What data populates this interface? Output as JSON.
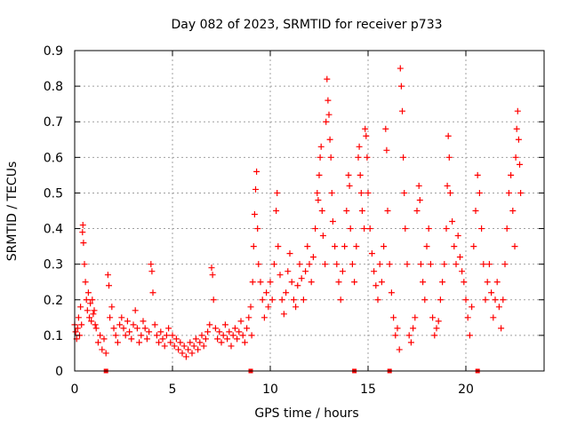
{
  "chart_data": {
    "type": "scatter",
    "title": "Day 082 of 2023, SRMTID for receiver p733",
    "xlabel": "GPS time / hours",
    "ylabel": "SRMTID / TECUs",
    "xlim": [
      0,
      24
    ],
    "ylim": [
      0,
      0.9
    ],
    "xticks": [
      0,
      5,
      10,
      15,
      20
    ],
    "yticks": [
      0,
      0.1,
      0.2,
      0.3,
      0.4,
      0.5,
      0.6,
      0.7,
      0.8,
      0.9
    ],
    "xtick_labels": [
      "0",
      "5",
      "10",
      "15",
      "20"
    ],
    "ytick_labels": [
      "0",
      "0.1",
      "0.2",
      "0.3",
      "0.4",
      "0.5",
      "0.6",
      "0.7",
      "0.8",
      "0.9"
    ],
    "grid": true,
    "marker": "+",
    "color": "#ff0000",
    "baseline_markers_x": [
      1.6,
      9.0,
      14.3,
      16.1,
      20.6
    ],
    "series": [
      {
        "name": "SRMTID",
        "points": [
          [
            0.0,
            0.13
          ],
          [
            0.05,
            0.11
          ],
          [
            0.1,
            0.09
          ],
          [
            0.15,
            0.12
          ],
          [
            0.2,
            0.15
          ],
          [
            0.25,
            0.1
          ],
          [
            0.3,
            0.18
          ],
          [
            0.35,
            0.13
          ],
          [
            0.4,
            0.39
          ],
          [
            0.42,
            0.41
          ],
          [
            0.45,
            0.36
          ],
          [
            0.5,
            0.3
          ],
          [
            0.55,
            0.25
          ],
          [
            0.6,
            0.2
          ],
          [
            0.65,
            0.17
          ],
          [
            0.7,
            0.22
          ],
          [
            0.75,
            0.15
          ],
          [
            0.8,
            0.19
          ],
          [
            0.85,
            0.14
          ],
          [
            0.9,
            0.2
          ],
          [
            0.95,
            0.16
          ],
          [
            1.0,
            0.17
          ],
          [
            1.05,
            0.13
          ],
          [
            1.1,
            0.12
          ],
          [
            1.2,
            0.08
          ],
          [
            1.3,
            0.1
          ],
          [
            1.4,
            0.06
          ],
          [
            1.5,
            0.09
          ],
          [
            1.6,
            0.05
          ],
          [
            1.7,
            0.27
          ],
          [
            1.75,
            0.24
          ],
          [
            1.8,
            0.15
          ],
          [
            1.9,
            0.18
          ],
          [
            2.0,
            0.12
          ],
          [
            2.1,
            0.1
          ],
          [
            2.2,
            0.08
          ],
          [
            2.3,
            0.13
          ],
          [
            2.4,
            0.15
          ],
          [
            2.5,
            0.12
          ],
          [
            2.6,
            0.1
          ],
          [
            2.7,
            0.14
          ],
          [
            2.8,
            0.11
          ],
          [
            2.9,
            0.09
          ],
          [
            3.0,
            0.13
          ],
          [
            3.1,
            0.17
          ],
          [
            3.2,
            0.12
          ],
          [
            3.3,
            0.08
          ],
          [
            3.4,
            0.1
          ],
          [
            3.5,
            0.14
          ],
          [
            3.6,
            0.12
          ],
          [
            3.7,
            0.09
          ],
          [
            3.8,
            0.11
          ],
          [
            3.9,
            0.3
          ],
          [
            3.95,
            0.28
          ],
          [
            4.0,
            0.22
          ],
          [
            4.1,
            0.13
          ],
          [
            4.2,
            0.1
          ],
          [
            4.3,
            0.08
          ],
          [
            4.4,
            0.11
          ],
          [
            4.5,
            0.09
          ],
          [
            4.6,
            0.07
          ],
          [
            4.7,
            0.1
          ],
          [
            4.8,
            0.12
          ],
          [
            4.9,
            0.08
          ],
          [
            5.0,
            0.1
          ],
          [
            5.1,
            0.07
          ],
          [
            5.2,
            0.09
          ],
          [
            5.3,
            0.06
          ],
          [
            5.4,
            0.08
          ],
          [
            5.5,
            0.05
          ],
          [
            5.6,
            0.07
          ],
          [
            5.7,
            0.04
          ],
          [
            5.8,
            0.06
          ],
          [
            5.9,
            0.08
          ],
          [
            6.0,
            0.05
          ],
          [
            6.1,
            0.07
          ],
          [
            6.2,
            0.09
          ],
          [
            6.3,
            0.06
          ],
          [
            6.4,
            0.08
          ],
          [
            6.5,
            0.1
          ],
          [
            6.6,
            0.07
          ],
          [
            6.7,
            0.09
          ],
          [
            6.8,
            0.11
          ],
          [
            6.9,
            0.13
          ],
          [
            7.0,
            0.29
          ],
          [
            7.05,
            0.27
          ],
          [
            7.1,
            0.2
          ],
          [
            7.2,
            0.12
          ],
          [
            7.3,
            0.09
          ],
          [
            7.4,
            0.11
          ],
          [
            7.5,
            0.08
          ],
          [
            7.6,
            0.1
          ],
          [
            7.7,
            0.13
          ],
          [
            7.8,
            0.09
          ],
          [
            7.9,
            0.11
          ],
          [
            8.0,
            0.07
          ],
          [
            8.1,
            0.1
          ],
          [
            8.2,
            0.12
          ],
          [
            8.3,
            0.09
          ],
          [
            8.4,
            0.11
          ],
          [
            8.5,
            0.14
          ],
          [
            8.6,
            0.1
          ],
          [
            8.7,
            0.08
          ],
          [
            8.8,
            0.12
          ],
          [
            8.9,
            0.15
          ],
          [
            9.0,
            0.18
          ],
          [
            9.05,
            0.1
          ],
          [
            9.1,
            0.25
          ],
          [
            9.15,
            0.35
          ],
          [
            9.2,
            0.44
          ],
          [
            9.25,
            0.51
          ],
          [
            9.3,
            0.56
          ],
          [
            9.35,
            0.4
          ],
          [
            9.4,
            0.3
          ],
          [
            9.5,
            0.25
          ],
          [
            9.6,
            0.2
          ],
          [
            9.7,
            0.15
          ],
          [
            9.8,
            0.22
          ],
          [
            9.9,
            0.18
          ],
          [
            10.0,
            0.25
          ],
          [
            10.1,
            0.2
          ],
          [
            10.2,
            0.3
          ],
          [
            10.3,
            0.45
          ],
          [
            10.35,
            0.5
          ],
          [
            10.4,
            0.35
          ],
          [
            10.5,
            0.27
          ],
          [
            10.6,
            0.2
          ],
          [
            10.7,
            0.16
          ],
          [
            10.8,
            0.22
          ],
          [
            10.9,
            0.28
          ],
          [
            11.0,
            0.33
          ],
          [
            11.1,
            0.25
          ],
          [
            11.2,
            0.2
          ],
          [
            11.3,
            0.18
          ],
          [
            11.4,
            0.24
          ],
          [
            11.5,
            0.3
          ],
          [
            11.6,
            0.26
          ],
          [
            11.7,
            0.2
          ],
          [
            11.8,
            0.28
          ],
          [
            11.9,
            0.35
          ],
          [
            12.0,
            0.3
          ],
          [
            12.1,
            0.25
          ],
          [
            12.2,
            0.32
          ],
          [
            12.3,
            0.4
          ],
          [
            12.4,
            0.5
          ],
          [
            12.45,
            0.48
          ],
          [
            12.5,
            0.55
          ],
          [
            12.55,
            0.6
          ],
          [
            12.6,
            0.63
          ],
          [
            12.65,
            0.45
          ],
          [
            12.7,
            0.38
          ],
          [
            12.8,
            0.3
          ],
          [
            12.85,
            0.7
          ],
          [
            12.9,
            0.82
          ],
          [
            12.95,
            0.76
          ],
          [
            13.0,
            0.72
          ],
          [
            13.05,
            0.65
          ],
          [
            13.1,
            0.6
          ],
          [
            13.15,
            0.5
          ],
          [
            13.2,
            0.42
          ],
          [
            13.3,
            0.35
          ],
          [
            13.4,
            0.3
          ],
          [
            13.5,
            0.25
          ],
          [
            13.6,
            0.2
          ],
          [
            13.7,
            0.28
          ],
          [
            13.8,
            0.35
          ],
          [
            13.9,
            0.45
          ],
          [
            14.0,
            0.55
          ],
          [
            14.05,
            0.52
          ],
          [
            14.1,
            0.4
          ],
          [
            14.2,
            0.3
          ],
          [
            14.3,
            0.25
          ],
          [
            14.4,
            0.35
          ],
          [
            14.5,
            0.6
          ],
          [
            14.55,
            0.63
          ],
          [
            14.6,
            0.55
          ],
          [
            14.65,
            0.5
          ],
          [
            14.7,
            0.45
          ],
          [
            14.8,
            0.4
          ],
          [
            14.85,
            0.68
          ],
          [
            14.9,
            0.66
          ],
          [
            14.95,
            0.6
          ],
          [
            15.0,
            0.5
          ],
          [
            15.1,
            0.4
          ],
          [
            15.2,
            0.33
          ],
          [
            15.3,
            0.28
          ],
          [
            15.4,
            0.24
          ],
          [
            15.5,
            0.2
          ],
          [
            15.6,
            0.3
          ],
          [
            15.7,
            0.25
          ],
          [
            15.8,
            0.35
          ],
          [
            15.9,
            0.68
          ],
          [
            15.95,
            0.62
          ],
          [
            16.0,
            0.45
          ],
          [
            16.1,
            0.3
          ],
          [
            16.2,
            0.22
          ],
          [
            16.3,
            0.15
          ],
          [
            16.4,
            0.1
          ],
          [
            16.5,
            0.12
          ],
          [
            16.6,
            0.06
          ],
          [
            16.65,
            0.85
          ],
          [
            16.7,
            0.8
          ],
          [
            16.75,
            0.73
          ],
          [
            16.8,
            0.6
          ],
          [
            16.85,
            0.5
          ],
          [
            16.9,
            0.4
          ],
          [
            17.0,
            0.3
          ],
          [
            17.1,
            0.1
          ],
          [
            17.2,
            0.08
          ],
          [
            17.3,
            0.12
          ],
          [
            17.4,
            0.15
          ],
          [
            17.5,
            0.45
          ],
          [
            17.6,
            0.52
          ],
          [
            17.65,
            0.48
          ],
          [
            17.7,
            0.3
          ],
          [
            17.8,
            0.25
          ],
          [
            17.9,
            0.2
          ],
          [
            18.0,
            0.35
          ],
          [
            18.1,
            0.4
          ],
          [
            18.2,
            0.3
          ],
          [
            18.3,
            0.15
          ],
          [
            18.4,
            0.1
          ],
          [
            18.5,
            0.12
          ],
          [
            18.6,
            0.14
          ],
          [
            18.7,
            0.2
          ],
          [
            18.8,
            0.25
          ],
          [
            18.9,
            0.3
          ],
          [
            19.0,
            0.4
          ],
          [
            19.05,
            0.52
          ],
          [
            19.1,
            0.66
          ],
          [
            19.15,
            0.6
          ],
          [
            19.2,
            0.5
          ],
          [
            19.3,
            0.42
          ],
          [
            19.4,
            0.35
          ],
          [
            19.5,
            0.3
          ],
          [
            19.6,
            0.38
          ],
          [
            19.7,
            0.32
          ],
          [
            19.8,
            0.28
          ],
          [
            19.9,
            0.25
          ],
          [
            20.0,
            0.2
          ],
          [
            20.1,
            0.15
          ],
          [
            20.2,
            0.1
          ],
          [
            20.3,
            0.18
          ],
          [
            20.4,
            0.35
          ],
          [
            20.5,
            0.45
          ],
          [
            20.6,
            0.55
          ],
          [
            20.7,
            0.5
          ],
          [
            20.8,
            0.4
          ],
          [
            20.9,
            0.3
          ],
          [
            21.0,
            0.2
          ],
          [
            21.1,
            0.25
          ],
          [
            21.2,
            0.3
          ],
          [
            21.3,
            0.22
          ],
          [
            21.4,
            0.15
          ],
          [
            21.5,
            0.2
          ],
          [
            21.6,
            0.25
          ],
          [
            21.7,
            0.18
          ],
          [
            21.8,
            0.12
          ],
          [
            21.9,
            0.2
          ],
          [
            22.0,
            0.3
          ],
          [
            22.1,
            0.4
          ],
          [
            22.2,
            0.5
          ],
          [
            22.3,
            0.55
          ],
          [
            22.4,
            0.45
          ],
          [
            22.5,
            0.35
          ],
          [
            22.55,
            0.6
          ],
          [
            22.6,
            0.68
          ],
          [
            22.65,
            0.73
          ],
          [
            22.7,
            0.65
          ],
          [
            22.75,
            0.58
          ],
          [
            22.8,
            0.5
          ]
        ]
      }
    ]
  }
}
